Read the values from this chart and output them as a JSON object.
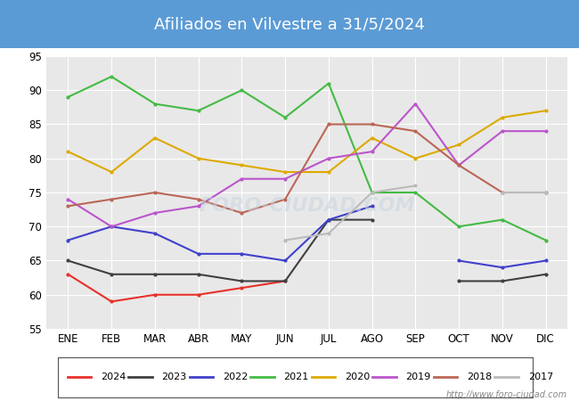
{
  "title": "Afiliados en Vilvestre a 31/5/2024",
  "ylim": [
    55,
    95
  ],
  "yticks": [
    55,
    60,
    65,
    70,
    75,
    80,
    85,
    90,
    95
  ],
  "months": [
    "ENE",
    "FEB",
    "MAR",
    "ABR",
    "MAY",
    "JUN",
    "JUL",
    "AGO",
    "SEP",
    "OCT",
    "NOV",
    "DIC"
  ],
  "url": "http://www.foro-ciudad.com",
  "series_order": [
    "2024",
    "2023",
    "2022",
    "2021",
    "2020",
    "2019",
    "2018",
    "2017"
  ],
  "colors": {
    "2024": "#e8302a",
    "2023": "#404040",
    "2022": "#4040cc",
    "2021": "#44bb44",
    "2020": "#ddaa00",
    "2019": "#bb55cc",
    "2018": "#bb6655",
    "2017": "#bbbbbb"
  },
  "series_data": {
    "2024": [
      63,
      59,
      60,
      60,
      61,
      62,
      null,
      null,
      null,
      null,
      null,
      null
    ],
    "2023": [
      65,
      63,
      63,
      63,
      62,
      62,
      71,
      71,
      null,
      62,
      62,
      63
    ],
    "2022": [
      68,
      70,
      69,
      66,
      66,
      65,
      71,
      73,
      null,
      65,
      64,
      65
    ],
    "2021": [
      89,
      92,
      88,
      87,
      90,
      86,
      91,
      75,
      75,
      70,
      71,
      68
    ],
    "2020": [
      81,
      78,
      83,
      80,
      79,
      78,
      78,
      83,
      80,
      82,
      86,
      87
    ],
    "2019": [
      74,
      70,
      72,
      73,
      77,
      77,
      80,
      81,
      88,
      79,
      84,
      84
    ],
    "2018": [
      73,
      74,
      75,
      74,
      72,
      74,
      85,
      85,
      84,
      79,
      75,
      75
    ],
    "2017": [
      null,
      null,
      null,
      null,
      null,
      68,
      69,
      75,
      76,
      null,
      75,
      75
    ]
  },
  "title_bg_color": "#5b9bd5",
  "title_color": "white",
  "plot_bg_color": "#e8e8e8",
  "grid_color": "white",
  "fig_bg_color": "white"
}
